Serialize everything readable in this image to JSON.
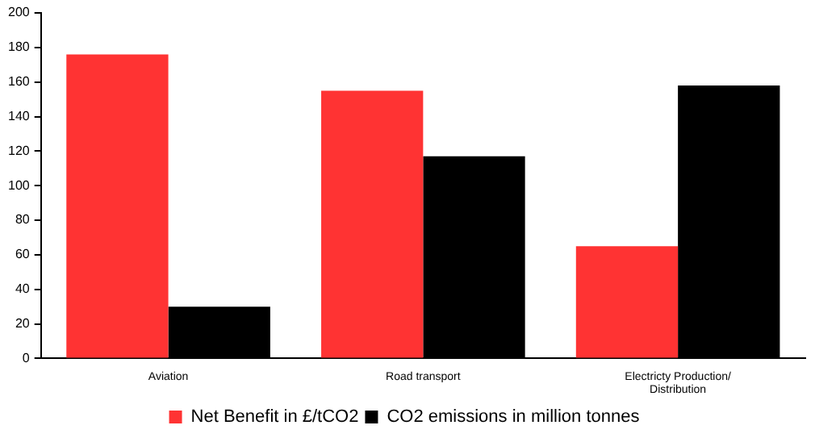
{
  "chart_data": {
    "type": "bar",
    "categories": [
      "Aviation",
      "Road transport",
      "Electricty Production/ Distribution"
    ],
    "series": [
      {
        "name": "Net Benefit in £/tCO2",
        "color": "#ff3333",
        "values": [
          176,
          155,
          65
        ]
      },
      {
        "name": "CO2 emissions in million tonnes",
        "color": "#000000",
        "values": [
          30,
          117,
          158
        ]
      }
    ],
    "ylim": [
      0,
      200
    ],
    "yticks": [
      0,
      20,
      40,
      60,
      80,
      100,
      120,
      140,
      160,
      180,
      200
    ],
    "grid": false,
    "legend": "bottom"
  }
}
